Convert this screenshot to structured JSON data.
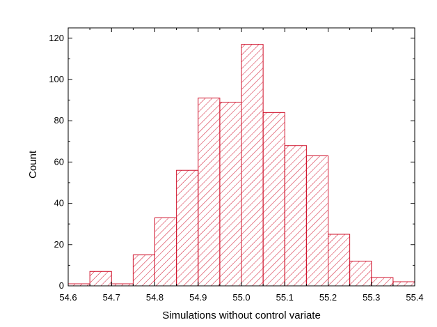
{
  "chart_data": {
    "type": "bar",
    "subtype": "histogram",
    "title": "",
    "xlabel": "Simulations without control variate",
    "ylabel": "Count",
    "xlim": [
      54.6,
      55.4
    ],
    "ylim": [
      0,
      125
    ],
    "xticks": [
      54.6,
      54.7,
      54.8,
      54.9,
      55.0,
      55.1,
      55.2,
      55.3,
      55.4
    ],
    "xtick_labels": [
      "54.6",
      "54.7",
      "54.8",
      "54.9",
      "55.0",
      "55.1",
      "55.2",
      "55.3",
      "55.4"
    ],
    "yticks": [
      0,
      20,
      40,
      60,
      80,
      100,
      120
    ],
    "ytick_labels": [
      "0",
      "20",
      "40",
      "60",
      "80",
      "100",
      "120"
    ],
    "bin_edges": [
      54.6,
      54.65,
      54.7,
      54.75,
      54.8,
      54.85,
      54.9,
      54.95,
      55.0,
      55.05,
      55.1,
      55.15,
      55.2,
      55.25,
      55.3,
      55.35,
      55.4
    ],
    "values": [
      1,
      7,
      1,
      15,
      33,
      56,
      91,
      89,
      117,
      84,
      68,
      63,
      25,
      12,
      4,
      2
    ],
    "bar_color": "#d0102a",
    "fill_pattern": "diagonal-hatch",
    "grid": false,
    "legend": "none"
  }
}
